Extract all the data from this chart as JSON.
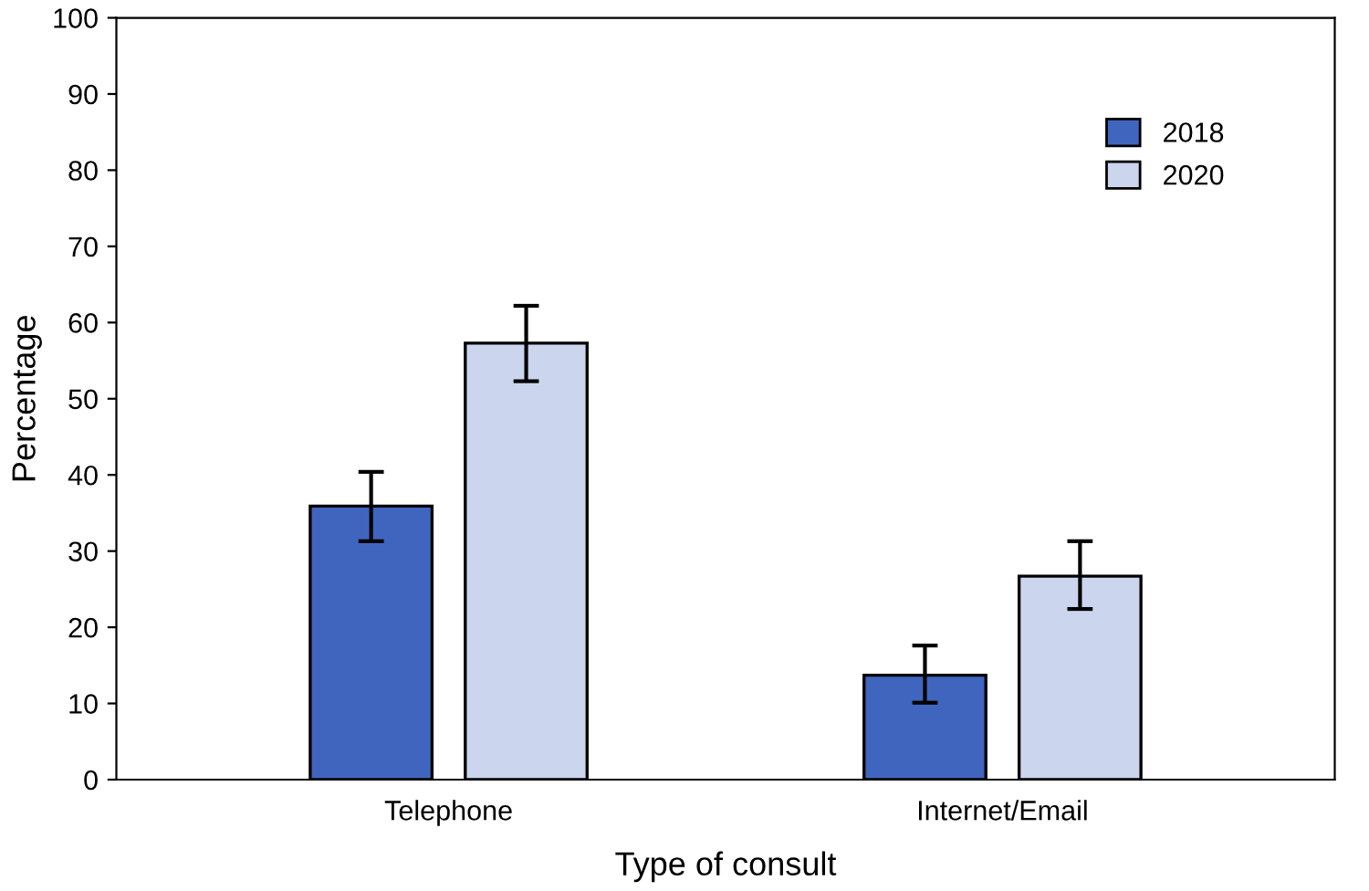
{
  "chart_data": {
    "type": "bar",
    "xlabel": "Type of consult",
    "ylabel": "Percentage",
    "categories": [
      "Telephone",
      "Internet/Email"
    ],
    "series": [
      {
        "name": "2018",
        "color": "#4065bf",
        "values": [
          35.9,
          13.7
        ],
        "errors": [
          [
            31.3,
            40.4
          ],
          [
            10.1,
            17.6
          ]
        ]
      },
      {
        "name": "2020",
        "color": "#cbd5ee",
        "values": [
          57.3,
          26.7
        ],
        "errors": [
          [
            52.3,
            62.2
          ],
          [
            22.4,
            31.3
          ]
        ]
      }
    ],
    "ylim": [
      0,
      100
    ],
    "yticks": [
      0,
      10,
      20,
      30,
      40,
      50,
      60,
      70,
      80,
      90,
      100
    ],
    "grid": false,
    "legend": "top right"
  }
}
